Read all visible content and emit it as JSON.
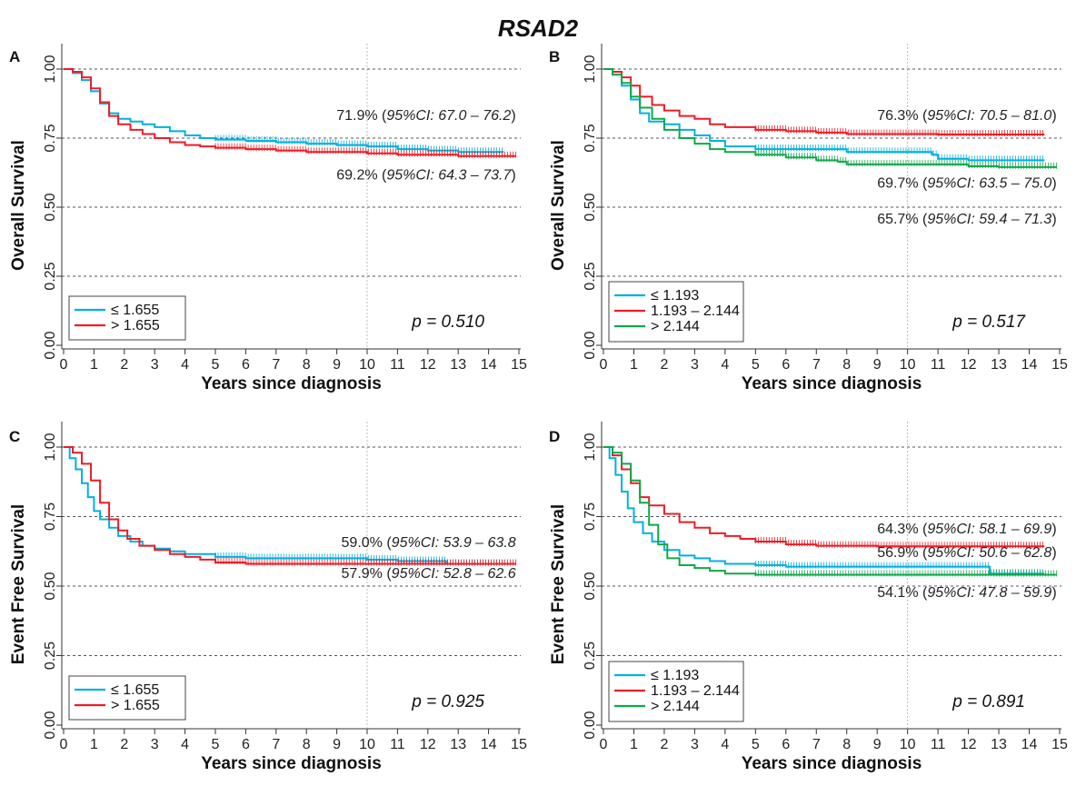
{
  "title": "RSAD2",
  "colors": {
    "low": "#00b0e0",
    "mid": "#ee1c24",
    "high": "#10a84a",
    "high_rgb": "#00a650"
  },
  "chart_data": [
    {
      "panel": "A",
      "type": "line",
      "ylabel": "Overall Survival",
      "xlabel": "Years since diagnosis",
      "xlim": [
        0,
        15
      ],
      "ylim": [
        0,
        1
      ],
      "xticks": [
        "0",
        "1",
        "2",
        "3",
        "4",
        "5",
        "6",
        "7",
        "8",
        "9",
        "10",
        "11",
        "12",
        "13",
        "14",
        "15"
      ],
      "yticks": [
        "0.00",
        "0.25",
        "0.50",
        "0.75",
        "1.00"
      ],
      "pvalue": "p = 0.510",
      "legend": [
        {
          "label": "≤ 1.655",
          "color": "#00b0e0"
        },
        {
          "label": "> 1.655",
          "color": "#ee1c24"
        }
      ],
      "annotations": [
        {
          "pct": "71.9% (",
          "ci": "95%CI: 67.0 – 76.2",
          ")": ")",
          "x": 14.9,
          "y": 0.815
        },
        {
          "pct": "69.2% (",
          "ci": "95%CI: 64.3 – 73.7",
          ")": ")",
          "x": 14.9,
          "y": 0.6
        }
      ],
      "series": [
        {
          "color": "#00b0e0",
          "x": [
            0,
            0.3,
            0.6,
            0.9,
            1.2,
            1.5,
            1.8,
            2.2,
            2.6,
            3,
            3.5,
            4,
            4.5,
            5,
            6,
            7,
            8,
            9,
            10,
            11,
            12,
            13,
            14.5
          ],
          "y": [
            1,
            0.985,
            0.96,
            0.92,
            0.875,
            0.84,
            0.82,
            0.81,
            0.8,
            0.79,
            0.775,
            0.76,
            0.75,
            0.745,
            0.74,
            0.735,
            0.73,
            0.725,
            0.72,
            0.71,
            0.705,
            0.7,
            0.7
          ]
        },
        {
          "color": "#ee1c24",
          "x": [
            0,
            0.3,
            0.6,
            0.9,
            1.2,
            1.5,
            1.8,
            2.2,
            2.6,
            3,
            3.5,
            4,
            4.5,
            5,
            6,
            7,
            8,
            9,
            10,
            11,
            12,
            13,
            14.9
          ],
          "y": [
            1,
            0.99,
            0.97,
            0.93,
            0.88,
            0.83,
            0.8,
            0.78,
            0.765,
            0.75,
            0.735,
            0.725,
            0.72,
            0.715,
            0.71,
            0.705,
            0.7,
            0.7,
            0.695,
            0.69,
            0.69,
            0.685,
            0.685
          ]
        }
      ]
    },
    {
      "panel": "B",
      "type": "line",
      "ylabel": "Overall Survival",
      "xlabel": "Years since diagnosis",
      "xlim": [
        0,
        15
      ],
      "ylim": [
        0,
        1
      ],
      "xticks": [
        "0",
        "1",
        "2",
        "3",
        "4",
        "5",
        "6",
        "7",
        "8",
        "9",
        "10",
        "11",
        "12",
        "13",
        "14",
        "15"
      ],
      "yticks": [
        "0.00",
        "0.25",
        "0.50",
        "0.75",
        "1.00"
      ],
      "pvalue": "p = 0.517",
      "legend": [
        {
          "label": "≤ 1.193",
          "color": "#00b0e0"
        },
        {
          "label": "1.193 – 2.144",
          "color": "#ee1c24"
        },
        {
          "label": "> 2.144",
          "color": "#10a84a"
        }
      ],
      "annotations": [
        {
          "pct": "76.3% (",
          "ci": "95%CI: 70.5 – 81.0",
          ")": ")",
          "x": 14.9,
          "y": 0.815
        },
        {
          "pct": "69.7% (",
          "ci": "95%CI: 63.5 – 75.0",
          ")": ")",
          "x": 14.9,
          "y": 0.57
        },
        {
          "pct": "65.7% (",
          "ci": "95%CI: 59.4 – 71.3",
          ")": ")",
          "x": 14.9,
          "y": 0.44
        }
      ],
      "series": [
        {
          "color": "#00b0e0",
          "x": [
            0,
            0.3,
            0.6,
            0.9,
            1.2,
            1.5,
            2,
            2.5,
            3,
            3.5,
            4,
            5,
            6,
            7,
            8,
            9,
            10,
            10.8,
            11,
            12,
            13,
            14.5
          ],
          "y": [
            1,
            0.98,
            0.94,
            0.89,
            0.84,
            0.81,
            0.8,
            0.78,
            0.76,
            0.74,
            0.72,
            0.71,
            0.71,
            0.71,
            0.7,
            0.7,
            0.7,
            0.69,
            0.675,
            0.67,
            0.67,
            0.67
          ]
        },
        {
          "color": "#ee1c24",
          "x": [
            0,
            0.3,
            0.6,
            0.9,
            1.2,
            1.6,
            2,
            2.5,
            3,
            3.5,
            4,
            5,
            6,
            7,
            8,
            9,
            10,
            11,
            12,
            13,
            14.5
          ],
          "y": [
            1,
            0.99,
            0.97,
            0.94,
            0.9,
            0.87,
            0.85,
            0.83,
            0.82,
            0.8,
            0.79,
            0.78,
            0.775,
            0.77,
            0.765,
            0.765,
            0.765,
            0.763,
            0.763,
            0.763,
            0.763
          ]
        },
        {
          "color": "#10a84a",
          "x": [
            0,
            0.3,
            0.6,
            0.9,
            1.2,
            1.6,
            2,
            2.5,
            3,
            3.5,
            4,
            5,
            6,
            7,
            7.7,
            8,
            9,
            10,
            11,
            12,
            13,
            14,
            14.9
          ],
          "y": [
            1,
            0.98,
            0.95,
            0.9,
            0.86,
            0.82,
            0.78,
            0.75,
            0.73,
            0.71,
            0.7,
            0.69,
            0.68,
            0.67,
            0.665,
            0.655,
            0.655,
            0.655,
            0.655,
            0.648,
            0.645,
            0.645,
            0.645
          ]
        }
      ]
    },
    {
      "panel": "C",
      "type": "line",
      "ylabel": "Event Free Survival",
      "xlabel": "Years since diagnosis",
      "xlim": [
        0,
        15
      ],
      "ylim": [
        0,
        1
      ],
      "xticks": [
        "0",
        "1",
        "2",
        "3",
        "4",
        "5",
        "6",
        "7",
        "8",
        "9",
        "10",
        "11",
        "12",
        "13",
        "14",
        "15"
      ],
      "yticks": [
        "0.00",
        "0.25",
        "0.50",
        "0.75",
        "1.00"
      ],
      "pvalue": "p = 0.925",
      "legend": [
        {
          "label": "≤ 1.655",
          "color": "#00b0e0"
        },
        {
          "label": "> 1.655",
          "color": "#ee1c24"
        }
      ],
      "annotations": [
        {
          "pct": "59.0% (",
          "ci": "95%CI: 53.9 – 63.8",
          ")": "",
          "x": 14.9,
          "y": 0.64
        },
        {
          "pct": "57.9% (",
          "ci": "95%CI: 52.8 – 62.6",
          ")": "",
          "x": 14.9,
          "y": 0.53
        }
      ],
      "series": [
        {
          "color": "#00b0e0",
          "x": [
            0,
            0.2,
            0.4,
            0.6,
            0.8,
            1,
            1.2,
            1.5,
            1.8,
            2.2,
            2.6,
            3,
            3.5,
            4,
            5,
            6,
            7,
            8,
            9,
            10,
            11,
            12,
            12.6,
            13,
            14.5
          ],
          "y": [
            1,
            0.96,
            0.92,
            0.87,
            0.82,
            0.77,
            0.74,
            0.71,
            0.68,
            0.66,
            0.645,
            0.635,
            0.625,
            0.615,
            0.605,
            0.6,
            0.6,
            0.6,
            0.6,
            0.595,
            0.59,
            0.59,
            0.58,
            0.58,
            0.58
          ]
        },
        {
          "color": "#ee1c24",
          "x": [
            0,
            0.3,
            0.6,
            0.9,
            1.2,
            1.5,
            1.8,
            2.1,
            2.5,
            3,
            3.5,
            4,
            4.5,
            5,
            6,
            7,
            8,
            9,
            10,
            11,
            12,
            13,
            14.9
          ],
          "y": [
            1,
            0.98,
            0.94,
            0.88,
            0.8,
            0.74,
            0.7,
            0.67,
            0.645,
            0.63,
            0.615,
            0.605,
            0.595,
            0.585,
            0.58,
            0.58,
            0.58,
            0.58,
            0.58,
            0.58,
            0.58,
            0.58,
            0.58
          ]
        }
      ]
    },
    {
      "panel": "D",
      "type": "line",
      "ylabel": "Event Free Survival",
      "xlabel": "Years since diagnosis",
      "xlim": [
        0,
        15
      ],
      "ylim": [
        0,
        1
      ],
      "xticks": [
        "0",
        "1",
        "2",
        "3",
        "4",
        "5",
        "6",
        "7",
        "8",
        "9",
        "10",
        "11",
        "12",
        "13",
        "14",
        "15"
      ],
      "yticks": [
        "0.00",
        "0.25",
        "0.50",
        "0.75",
        "1.00"
      ],
      "pvalue": "p = 0.891",
      "legend": [
        {
          "label": "≤ 1.193",
          "color": "#00b0e0"
        },
        {
          "label": "1.193 – 2.144",
          "color": "#ee1c24"
        },
        {
          "label": "> 2.144",
          "color": "#10a84a"
        }
      ],
      "annotations": [
        {
          "pct": "64.3% (",
          "ci": "95%CI: 58.1 – 69.9",
          ")": ")",
          "x": 14.9,
          "y": 0.69
        },
        {
          "pct": "56.9% (",
          "ci": "95%CI: 50.6 – 62.8",
          ")": ")",
          "x": 14.9,
          "y": 0.605
        },
        {
          "pct": "54.1% (",
          "ci": "95%CI: 47.8 – 59.9",
          ")": ")",
          "x": 14.9,
          "y": 0.46
        }
      ],
      "series": [
        {
          "color": "#00b0e0",
          "x": [
            0,
            0.2,
            0.4,
            0.6,
            0.8,
            1,
            1.3,
            1.6,
            2,
            2.5,
            3,
            3.5,
            4,
            5,
            6,
            7,
            8,
            9,
            10,
            11,
            12,
            12.7,
            13,
            14.5
          ],
          "y": [
            1,
            0.96,
            0.9,
            0.84,
            0.78,
            0.73,
            0.69,
            0.66,
            0.63,
            0.61,
            0.6,
            0.59,
            0.58,
            0.575,
            0.57,
            0.57,
            0.57,
            0.57,
            0.57,
            0.57,
            0.57,
            0.545,
            0.545,
            0.545
          ]
        },
        {
          "color": "#ee1c24",
          "x": [
            0,
            0.3,
            0.6,
            0.9,
            1.2,
            1.5,
            2,
            2.5,
            3,
            3.5,
            4,
            4.5,
            5,
            6,
            7,
            8,
            9,
            10,
            11,
            12,
            13,
            14.5
          ],
          "y": [
            1,
            0.97,
            0.92,
            0.87,
            0.82,
            0.79,
            0.76,
            0.73,
            0.71,
            0.69,
            0.68,
            0.67,
            0.66,
            0.65,
            0.645,
            0.645,
            0.643,
            0.643,
            0.643,
            0.643,
            0.643,
            0.643
          ]
        },
        {
          "color": "#10a84a",
          "x": [
            0,
            0.3,
            0.6,
            0.9,
            1.2,
            1.5,
            1.8,
            2.1,
            2.5,
            3,
            3.5,
            4,
            5,
            6,
            7,
            8,
            9,
            10,
            11,
            12,
            13,
            14,
            14.9
          ],
          "y": [
            1,
            0.98,
            0.94,
            0.88,
            0.8,
            0.72,
            0.65,
            0.6,
            0.575,
            0.565,
            0.555,
            0.545,
            0.541,
            0.541,
            0.541,
            0.541,
            0.541,
            0.541,
            0.541,
            0.541,
            0.541,
            0.541,
            0.541
          ]
        }
      ]
    }
  ]
}
